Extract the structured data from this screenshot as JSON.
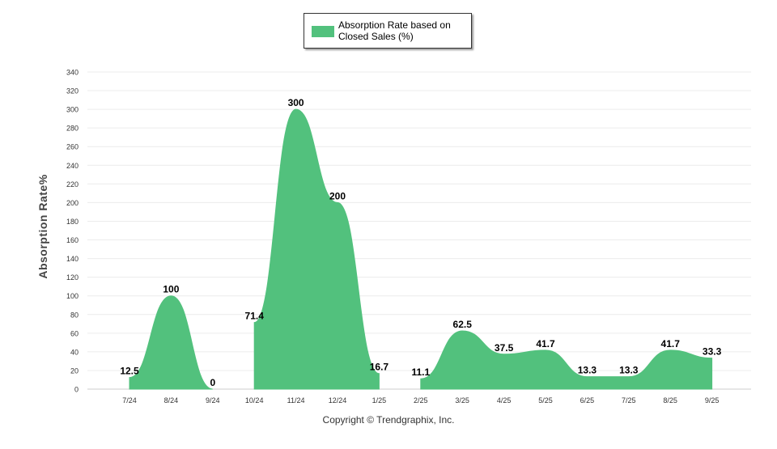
{
  "chart_data": {
    "type": "area",
    "categories": [
      "7/24",
      "8/24",
      "9/24",
      "10/24",
      "11/24",
      "12/24",
      "1/25",
      "2/25",
      "3/25",
      "4/25",
      "5/25",
      "6/25",
      "7/25",
      "8/25",
      "9/25"
    ],
    "values": [
      12.5,
      100,
      0,
      71.4,
      300,
      200,
      16.7,
      11.1,
      62.5,
      37.5,
      41.7,
      13.3,
      13.3,
      41.7,
      33.3
    ],
    "value_labels": [
      "12.5",
      "100",
      "0",
      "71.4",
      "300",
      "200",
      "16.7",
      "11.1",
      "62.5",
      "37.5",
      "41.7",
      "13.3",
      "13.3",
      "41.7",
      "33.3"
    ],
    "segments_broken_after": [
      2,
      6
    ],
    "ylabel": "Absorption Rate%",
    "xlabel": "",
    "ylim": [
      0,
      340
    ],
    "ytick_step": 20,
    "grid": true,
    "legend_position": "top-center",
    "series": [
      {
        "name": "Absorption Rate based on Closed Sales (%)",
        "color": "#52c17d"
      }
    ]
  },
  "legend": {
    "line1": "Absorption Rate based on",
    "line2": "Closed Sales (%)"
  },
  "footer": {
    "copyright": "Copyright © Trendgraphix, Inc."
  },
  "colors": {
    "area": "#52c17d",
    "grid": "#e6e6e6",
    "axis_text": "#333333"
  }
}
